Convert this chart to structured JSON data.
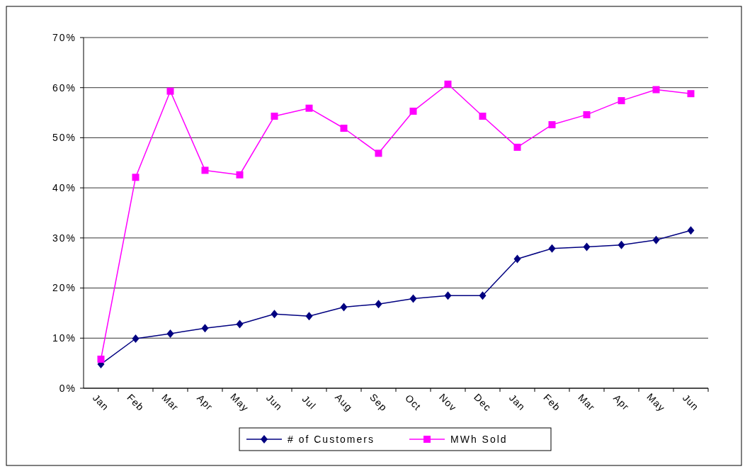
{
  "chart_data": {
    "type": "line",
    "categories": [
      "Jan",
      "Feb",
      "Mar",
      "Apr",
      "May",
      "Jun",
      "Jul",
      "Aug",
      "Sep",
      "Oct",
      "Nov",
      "Dec",
      "Jan",
      "Feb",
      "Mar",
      "Apr",
      "May",
      "Jun"
    ],
    "series": [
      {
        "name": "# of Customers",
        "color": "#000080",
        "marker": "diamond",
        "values": [
          4.8,
          9.9,
          10.9,
          12.0,
          12.8,
          14.8,
          14.4,
          16.2,
          16.8,
          17.9,
          18.5,
          18.5,
          25.8,
          27.9,
          28.2,
          28.6,
          29.6,
          31.5
        ]
      },
      {
        "name": "MWh Sold",
        "color": "#ff00ff",
        "marker": "square",
        "values": [
          5.8,
          42.1,
          59.3,
          43.5,
          42.6,
          54.3,
          55.9,
          51.9,
          46.9,
          55.3,
          60.7,
          54.3,
          48.1,
          52.6,
          54.6,
          57.4,
          59.6,
          58.8
        ]
      }
    ],
    "ylim": [
      0,
      70
    ],
    "yticks": [
      {
        "value": 0,
        "label": "0%"
      },
      {
        "value": 10,
        "label": "10%"
      },
      {
        "value": 20,
        "label": "20%"
      },
      {
        "value": 30,
        "label": "30%"
      },
      {
        "value": 40,
        "label": "40%"
      },
      {
        "value": 50,
        "label": "50%"
      },
      {
        "value": 60,
        "label": "60%"
      },
      {
        "value": 70,
        "label": "70%"
      }
    ],
    "grid": "y",
    "legend": "bottom",
    "line_style": "solid"
  }
}
